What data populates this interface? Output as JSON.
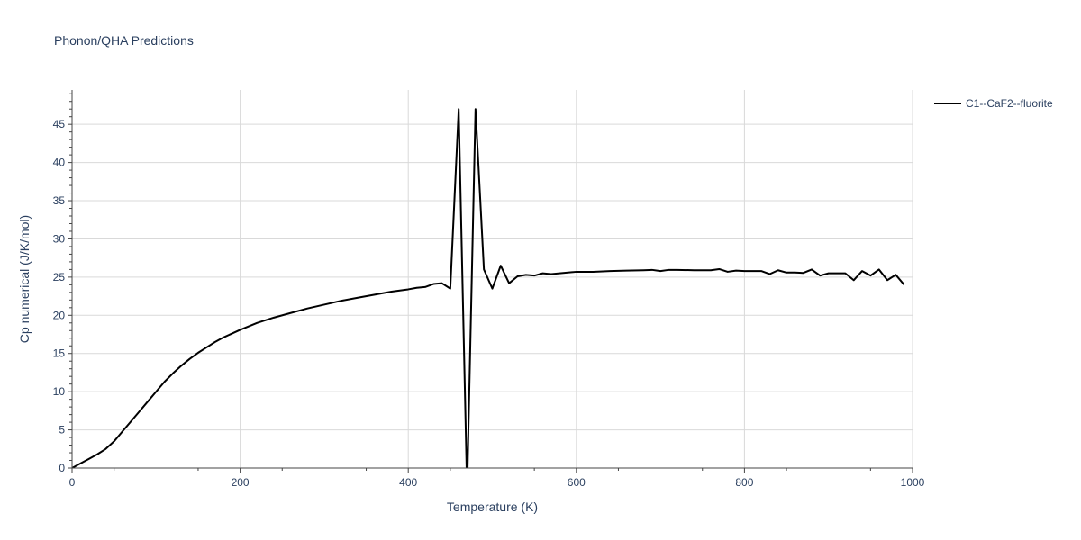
{
  "chart_data": {
    "type": "line",
    "title": "Phonon/QHA Predictions",
    "xlabel": "Temperature (K)",
    "ylabel": "Cp numerical (J/K/mol)",
    "xlim": [
      0,
      1000
    ],
    "ylim": [
      0,
      49.5
    ],
    "x_ticks": [
      0,
      200,
      400,
      600,
      800,
      1000
    ],
    "y_ticks": [
      0,
      5,
      10,
      15,
      20,
      25,
      30,
      35,
      40,
      45
    ],
    "grid": true,
    "legend_position": "top-right, outside plot",
    "series": [
      {
        "name": "C1--CaF2--fluorite",
        "color": "#000000",
        "x": [
          0,
          10,
          20,
          30,
          40,
          50,
          60,
          70,
          80,
          90,
          100,
          110,
          120,
          130,
          140,
          150,
          160,
          170,
          180,
          190,
          200,
          220,
          240,
          260,
          280,
          300,
          320,
          340,
          360,
          380,
          400,
          410,
          420,
          430,
          440,
          450,
          460,
          470,
          480,
          490,
          500,
          510,
          520,
          530,
          540,
          550,
          560,
          570,
          580,
          600,
          620,
          640,
          660,
          680,
          690,
          700,
          710,
          720,
          740,
          760,
          770,
          780,
          790,
          800,
          810,
          820,
          830,
          840,
          850,
          860,
          870,
          880,
          890,
          900,
          910,
          920,
          930,
          940,
          950,
          960,
          970,
          980,
          990
        ],
        "y": [
          0,
          0.6,
          1.2,
          1.8,
          2.5,
          3.5,
          4.8,
          6.1,
          7.4,
          8.7,
          10.0,
          11.3,
          12.4,
          13.4,
          14.3,
          15.1,
          15.8,
          16.5,
          17.1,
          17.6,
          18.1,
          19.0,
          19.7,
          20.3,
          20.9,
          21.4,
          21.9,
          22.3,
          22.7,
          23.1,
          23.4,
          23.6,
          23.7,
          24.1,
          24.2,
          23.5,
          47.0,
          -3.0,
          47.0,
          26.0,
          23.5,
          26.5,
          24.2,
          25.1,
          25.3,
          25.2,
          25.5,
          25.4,
          25.5,
          25.7,
          25.7,
          25.8,
          25.85,
          25.9,
          25.95,
          25.8,
          25.95,
          25.95,
          25.9,
          25.9,
          26.05,
          25.7,
          25.85,
          25.8,
          25.8,
          25.8,
          25.4,
          25.9,
          25.6,
          25.6,
          25.55,
          26.0,
          25.2,
          25.5,
          25.5,
          25.5,
          24.6,
          25.8,
          25.2,
          26.0,
          24.6,
          25.3,
          24.0
        ]
      }
    ]
  }
}
